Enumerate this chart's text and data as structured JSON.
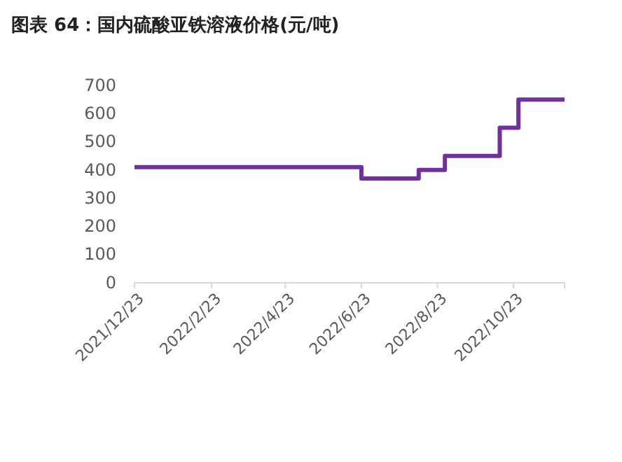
{
  "chart_data": {
    "type": "step",
    "title": "图表 64：国内硫酸亚铁溶液价格(元/吨)",
    "x": [
      "2021-12-23",
      "2022-06-23",
      "2022-08-08",
      "2022-08-29",
      "2022-10-12",
      "2022-10-27",
      "2022-12-03"
    ],
    "series": [
      {
        "color": "#7030a0",
        "values": [
          410,
          370,
          400,
          450,
          550,
          650,
          650
        ]
      }
    ],
    "xlim": [
      "2021-12-23",
      "2022-12-03"
    ],
    "xticks": [
      {
        "value": "2021-12-23",
        "label": "2021/12/23"
      },
      {
        "value": "2022-02-23",
        "label": "2022/2/23"
      },
      {
        "value": "2022-04-23",
        "label": "2022/4/23"
      },
      {
        "value": "2022-06-23",
        "label": "2022/6/23"
      },
      {
        "value": "2022-08-23",
        "label": "2022/8/23"
      },
      {
        "value": "2022-10-23",
        "label": "2022/10/23"
      }
    ],
    "ylim": [
      0,
      700
    ],
    "yticks": [
      0,
      100,
      200,
      300,
      400,
      500,
      600,
      700
    ],
    "grid": false
  }
}
